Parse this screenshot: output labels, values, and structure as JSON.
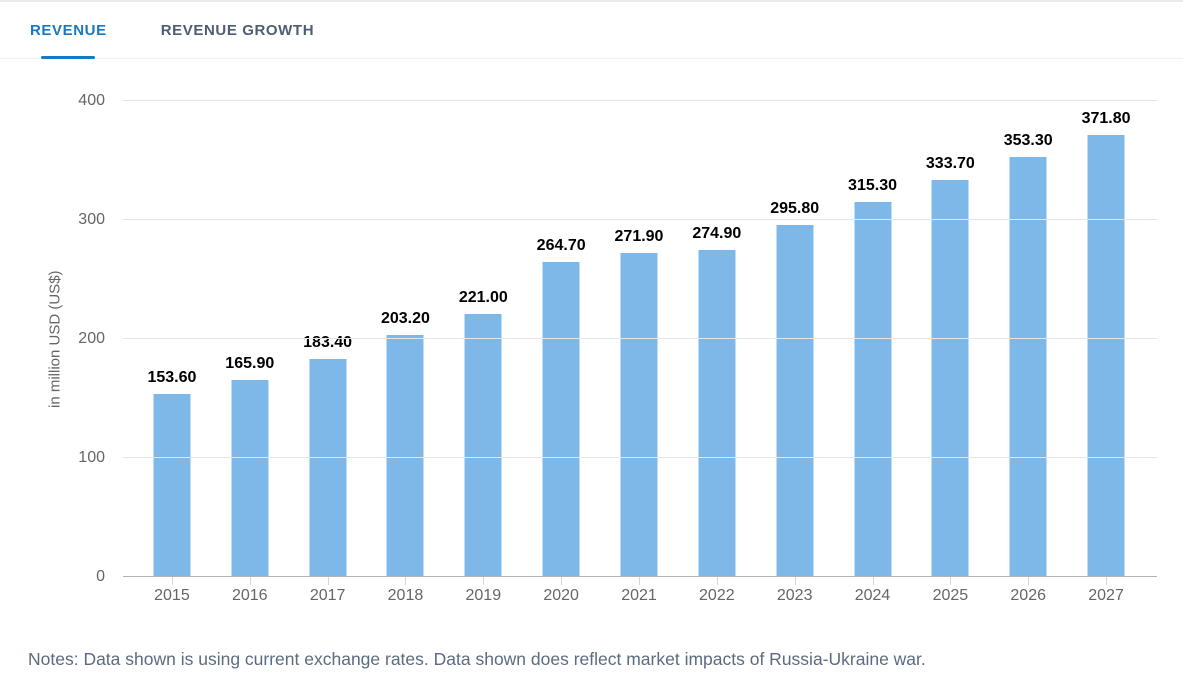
{
  "tab_bar": {
    "tabs": [
      {
        "label": "REVENUE",
        "active": true
      },
      {
        "label": "REVENUE GROWTH",
        "active": false
      }
    ]
  },
  "chart_data": {
    "type": "bar",
    "title": "",
    "categories": [
      "2015",
      "2016",
      "2017",
      "2018",
      "2019",
      "2020",
      "2021",
      "2022",
      "2023",
      "2024",
      "2025",
      "2026",
      "2027"
    ],
    "values": [
      153.6,
      165.9,
      183.4,
      203.2,
      221.0,
      264.7,
      271.9,
      274.9,
      295.8,
      315.3,
      333.7,
      353.3,
      371.8
    ],
    "value_labels": [
      "153.60",
      "165.90",
      "183.40",
      "203.20",
      "221.00",
      "264.70",
      "271.90",
      "274.90",
      "295.80",
      "315.30",
      "333.70",
      "353.30",
      "371.80"
    ],
    "xlabel": "",
    "ylabel": "in million USD (US$)",
    "ylim": [
      0,
      400
    ],
    "yticks": [
      0,
      100,
      200,
      300,
      400
    ],
    "grid": true,
    "legend": false
  },
  "notes": "Notes: Data shown is using current exchange rates. Data shown does reflect market impacts of Russia-Ukraine war.",
  "colors": {
    "active_tab": "#1878c2",
    "inactive_tab": "#4e5d73",
    "bar": "#7db8e8",
    "gridline": "#e6e6e6",
    "axis_line": "#b3b3b3",
    "tick": "#ccd6eb",
    "axis_label": "#666666",
    "value_label": "#000000",
    "notes_text": "#5b6c80"
  }
}
